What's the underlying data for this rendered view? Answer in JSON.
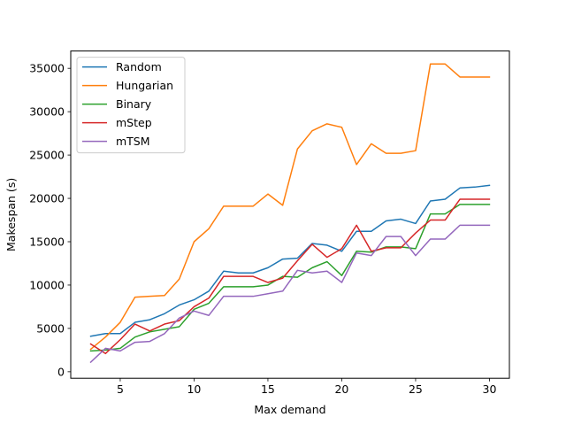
{
  "chart_data": {
    "type": "line",
    "title": "",
    "xlabel": "Max demand",
    "ylabel": "Makespan (s)",
    "xlim": [
      1.65,
      31.35
    ],
    "ylim": [
      -750,
      37000
    ],
    "x_ticks": [
      5,
      10,
      15,
      20,
      25,
      30
    ],
    "y_ticks": [
      0,
      5000,
      10000,
      15000,
      20000,
      25000,
      30000,
      35000
    ],
    "x_tick_labels": [
      "5",
      "10",
      "15",
      "20",
      "25",
      "30"
    ],
    "y_tick_labels": [
      "0",
      "5000",
      "10000",
      "15000",
      "20000",
      "25000",
      "30000",
      "35000"
    ],
    "grid": false,
    "legend_position": "top-left",
    "x": [
      3,
      4,
      5,
      6,
      7,
      8,
      9,
      10,
      11,
      12,
      13,
      14,
      15,
      16,
      17,
      18,
      19,
      20,
      21,
      22,
      23,
      24,
      25,
      26,
      27,
      28,
      29,
      30
    ],
    "series": [
      {
        "name": "Random",
        "color": "#1f77b4",
        "values": [
          4100,
          4400,
          4400,
          5700,
          6000,
          6700,
          7700,
          8300,
          9300,
          11600,
          11400,
          11400,
          12000,
          13000,
          13100,
          14800,
          14600,
          13900,
          16200,
          16200,
          17400,
          17600,
          17100,
          19700,
          19900,
          21200,
          21300,
          21500
        ]
      },
      {
        "name": "Hungarian",
        "color": "#ff7f0e",
        "values": [
          2600,
          4000,
          5700,
          8600,
          8700,
          8800,
          10700,
          15000,
          16500,
          19100,
          19100,
          19100,
          20500,
          19200,
          25700,
          27800,
          28600,
          28200,
          23900,
          26300,
          25200,
          25200,
          25500,
          35500,
          35500,
          34000,
          34000,
          34000
        ]
      },
      {
        "name": "Binary",
        "color": "#2ca02c",
        "values": [
          2400,
          2500,
          2700,
          4000,
          4600,
          4900,
          5200,
          7200,
          7900,
          9800,
          9800,
          9800,
          10000,
          11000,
          10900,
          12000,
          12700,
          11100,
          13900,
          13800,
          14400,
          14400,
          14200,
          18200,
          18200,
          19300,
          19300,
          19300
        ]
      },
      {
        "name": "mStep",
        "color": "#d62728",
        "values": [
          3200,
          2100,
          3700,
          5500,
          4700,
          5500,
          5900,
          7500,
          8500,
          11000,
          11000,
          11000,
          10300,
          10800,
          12800,
          14700,
          13200,
          14200,
          16900,
          13900,
          14300,
          14300,
          16000,
          17500,
          17500,
          19900,
          19900,
          19900
        ]
      },
      {
        "name": "mTSM",
        "color": "#9467bd",
        "values": [
          1100,
          2700,
          2400,
          3400,
          3500,
          4400,
          6200,
          7000,
          6500,
          8700,
          8700,
          8700,
          9000,
          9300,
          11700,
          11400,
          11600,
          10300,
          13700,
          13400,
          15600,
          15600,
          13400,
          15300,
          15300,
          16900,
          16900,
          16900
        ]
      }
    ]
  }
}
